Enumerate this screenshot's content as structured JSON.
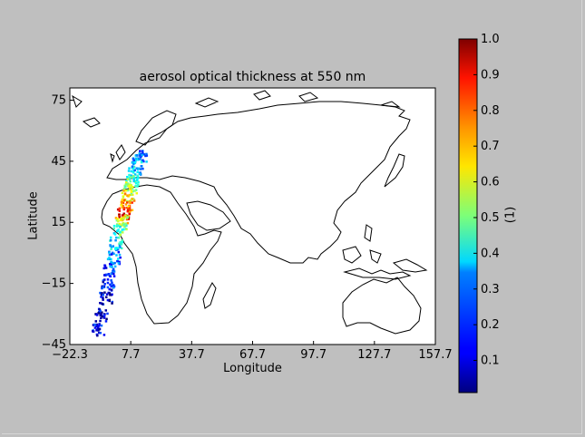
{
  "chart_data": {
    "type": "heatmap",
    "title": "aerosol optical thickness at 550 nm",
    "xlabel": "Longitude",
    "ylabel": "Latitude",
    "xlim": [
      -22.3,
      157.7
    ],
    "ylim": [
      -45,
      81
    ],
    "x_ticks": [
      -22.3,
      7.7,
      37.7,
      67.7,
      97.7,
      127.7,
      157.7
    ],
    "x_tick_labels": [
      "−22.3",
      "7.7",
      "37.7",
      "67.7",
      "97.7",
      "127.7",
      "157.7"
    ],
    "y_ticks": [
      75,
      45,
      15,
      -15,
      -45
    ],
    "y_tick_labels": [
      "75",
      "45",
      "15",
      "−15",
      "−45"
    ],
    "colorbar": {
      "label": "(1)",
      "range": [
        0.01,
        1.0
      ],
      "ticks": [
        1.0,
        0.9,
        0.8,
        0.7,
        0.6,
        0.5,
        0.4,
        0.3,
        0.2,
        0.1
      ],
      "tick_labels": [
        "1.0",
        "0.9",
        "0.8",
        "0.7",
        "0.6",
        "0.5",
        "0.4",
        "0.3",
        "0.2",
        "0.1"
      ],
      "colormap": "jet"
    },
    "swath": [
      {
        "lat": 48,
        "lon": 12,
        "aot": 0.25
      },
      {
        "lat": 44,
        "lon": 11,
        "aot": 0.3
      },
      {
        "lat": 40,
        "lon": 9,
        "aot": 0.35
      },
      {
        "lat": 36,
        "lon": 8,
        "aot": 0.45
      },
      {
        "lat": 32,
        "lon": 7,
        "aot": 0.55
      },
      {
        "lat": 28,
        "lon": 6,
        "aot": 0.65
      },
      {
        "lat": 24,
        "lon": 5,
        "aot": 0.75
      },
      {
        "lat": 20,
        "lon": 4,
        "aot": 0.9
      },
      {
        "lat": 16,
        "lon": 3,
        "aot": 0.6
      },
      {
        "lat": 12,
        "lon": 2,
        "aot": 0.45
      },
      {
        "lat": 5,
        "lon": 0,
        "aot": 0.35
      },
      {
        "lat": -2,
        "lon": -1,
        "aot": 0.25
      },
      {
        "lat": -8,
        "lon": -3,
        "aot": 0.2
      },
      {
        "lat": -15,
        "lon": -4,
        "aot": 0.15
      },
      {
        "lat": -22,
        "lon": -5,
        "aot": 0.1
      },
      {
        "lat": -30,
        "lon": -7,
        "aot": 0.08
      },
      {
        "lat": -37,
        "lon": -9,
        "aot": 0.12
      }
    ]
  },
  "colors": {
    "background": "#bfbfbf",
    "land_outline": "#000000",
    "plot_bg": "#ffffff"
  }
}
